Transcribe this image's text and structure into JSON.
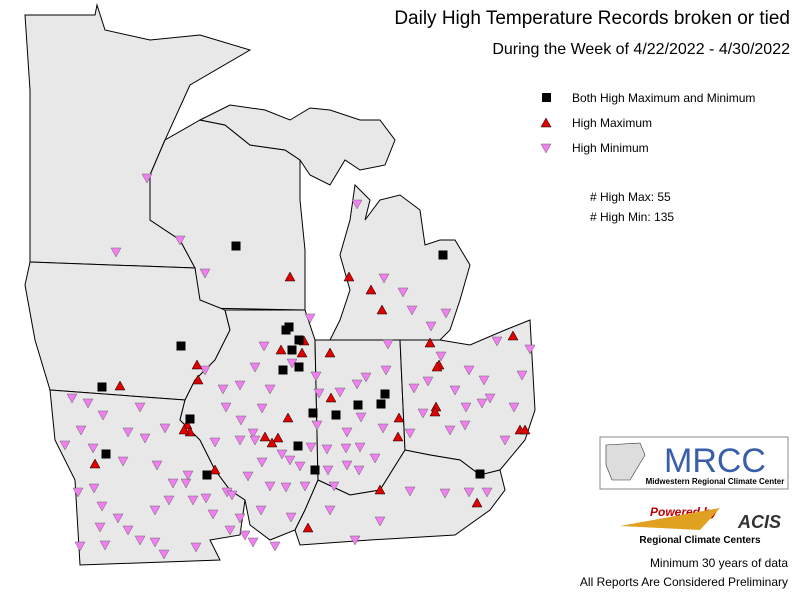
{
  "title": "Daily High Temperature Records broken or tied",
  "subtitle": "During the Week of 4/22/2022 - 4/30/2022",
  "legend": [
    {
      "label": "Both High Maximum and Minimum"
    },
    {
      "label": "High Maximum"
    },
    {
      "label": "High Minimum"
    }
  ],
  "counts": [
    "# High Max: 55",
    "# High Min: 135"
  ],
  "logo": {
    "name": "MRCC",
    "caption": "Midwestern Regional Climate Center"
  },
  "powered": {
    "text": "Powered by",
    "name": "ACIS",
    "caption": "Regional Climate Centers"
  },
  "notes": [
    "Minimum 30 years of data",
    "All Reports Are Considered Preliminary"
  ]
}
